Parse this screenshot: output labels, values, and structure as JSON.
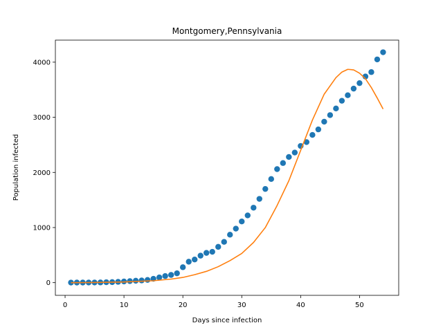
{
  "chart_data": {
    "type": "scatter",
    "title": "Montgomery,Pennsylvania",
    "xlabel": "Days since infection",
    "ylabel": "Population infected",
    "xlim": [
      -1.65,
      56.65
    ],
    "ylim": [
      -230,
      4400
    ],
    "xticks": [
      0,
      10,
      20,
      30,
      40,
      50
    ],
    "yticks": [
      0,
      1000,
      2000,
      3000,
      4000
    ],
    "grid": false,
    "series": [
      {
        "kind": "scatter",
        "color": "#1f77b4",
        "x": [
          1,
          2,
          3,
          4,
          5,
          6,
          7,
          8,
          9,
          10,
          11,
          12,
          13,
          14,
          15,
          16,
          17,
          18,
          19,
          20,
          21,
          22,
          23,
          24,
          25,
          26,
          27,
          28,
          29,
          30,
          31,
          32,
          33,
          34,
          35,
          36,
          37,
          38,
          39,
          40,
          41,
          42,
          43,
          44,
          45,
          46,
          47,
          48,
          49,
          50,
          51,
          52,
          53,
          54
        ],
        "y": [
          1,
          2,
          2,
          3,
          3,
          4,
          8,
          10,
          15,
          22,
          28,
          35,
          40,
          50,
          70,
          95,
          120,
          140,
          170,
          280,
          380,
          420,
          490,
          540,
          560,
          650,
          740,
          870,
          980,
          1110,
          1220,
          1360,
          1520,
          1700,
          1880,
          2060,
          2170,
          2280,
          2360,
          2480,
          2550,
          2680,
          2780,
          2920,
          3040,
          3160,
          3300,
          3400,
          3520,
          3620,
          3740,
          3820,
          4050,
          4180
        ]
      },
      {
        "kind": "line",
        "color": "#ff7f0e",
        "x": [
          1,
          5,
          10,
          15,
          18,
          20,
          22,
          24,
          26,
          28,
          30,
          32,
          34,
          36,
          38,
          40,
          42,
          44,
          46,
          47,
          48,
          49,
          50,
          51,
          52,
          53,
          54
        ],
        "y": [
          0,
          3,
          12,
          35,
          65,
          95,
          145,
          205,
          290,
          400,
          530,
          730,
          1000,
          1400,
          1850,
          2400,
          2950,
          3420,
          3720,
          3820,
          3870,
          3860,
          3800,
          3700,
          3540,
          3350,
          3150
        ]
      }
    ]
  }
}
